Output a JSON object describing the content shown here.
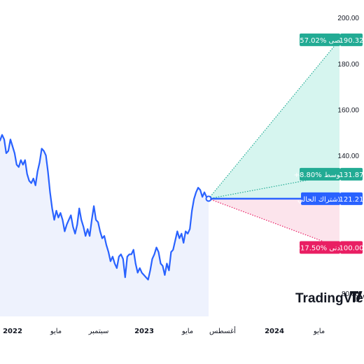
{
  "chart_data": {
    "type": "line",
    "title": "",
    "xlabel": "",
    "ylabel": "",
    "ylim": [
      70,
      204
    ],
    "x_ticks": [
      {
        "label": "2022",
        "bold": true
      },
      {
        "label": "مايو",
        "bold": false
      },
      {
        "label": "سبتمبر",
        "bold": false
      },
      {
        "label": "2023",
        "bold": true
      },
      {
        "label": "مايو",
        "bold": false
      },
      {
        "label": "أغسطس",
        "bold": false
      },
      {
        "label": "2024",
        "bold": true
      },
      {
        "label": "مايو",
        "bold": false
      }
    ],
    "y_ticks": [
      "200.00",
      "180.00",
      "160.00",
      "140.00",
      "80.00"
    ],
    "series": [
      {
        "values": [
          146.5,
          149,
          147,
          141,
          142,
          147,
          144,
          141,
          136,
          135,
          138,
          136,
          138,
          132,
          129,
          128,
          130,
          127,
          133,
          137,
          143,
          142,
          140,
          133,
          124,
          117,
          112,
          116,
          113,
          115,
          112,
          107,
          110,
          112,
          114,
          109,
          106,
          110,
          117,
          112,
          109,
          105,
          108,
          105,
          112,
          118,
          112,
          111,
          107,
          104,
          105,
          101,
          98,
          94,
          96,
          93,
          91,
          96,
          97,
          95,
          87,
          96,
          97,
          97,
          99,
          93,
          89,
          91,
          89,
          88,
          87,
          86,
          90,
          95,
          97,
          100,
          98,
          93,
          92,
          88,
          93,
          90,
          98,
          99,
          103,
          107,
          104,
          106,
          102,
          107,
          106,
          108,
          116,
          121,
          124,
          126,
          125,
          122,
          124,
          122,
          121.21
        ]
      }
    ],
    "forecast": {
      "current_value": 121.21,
      "current_label": "الاشتراك الحالي",
      "projections": [
        {
          "name": "أقصى",
          "change": "+57.02%",
          "value": 190.32,
          "color": "#22ab94"
        },
        {
          "name": "متوسط",
          "change": "+8.80%",
          "value": 131.87,
          "color": "#22ab94"
        },
        {
          "name": "أدنى",
          "change": "-17.50%",
          "value": 100.0,
          "color": "#e91e63"
        }
      ]
    },
    "colors": {
      "line": "#2962ff",
      "area_fill": "#eef2fd",
      "up_zone": "#d6f5ef",
      "down_zone": "#fce4ec",
      "up": "#22ab94",
      "down": "#e91e63",
      "current": "#2962ff"
    }
  },
  "watermark": {
    "text": "TradingView"
  }
}
